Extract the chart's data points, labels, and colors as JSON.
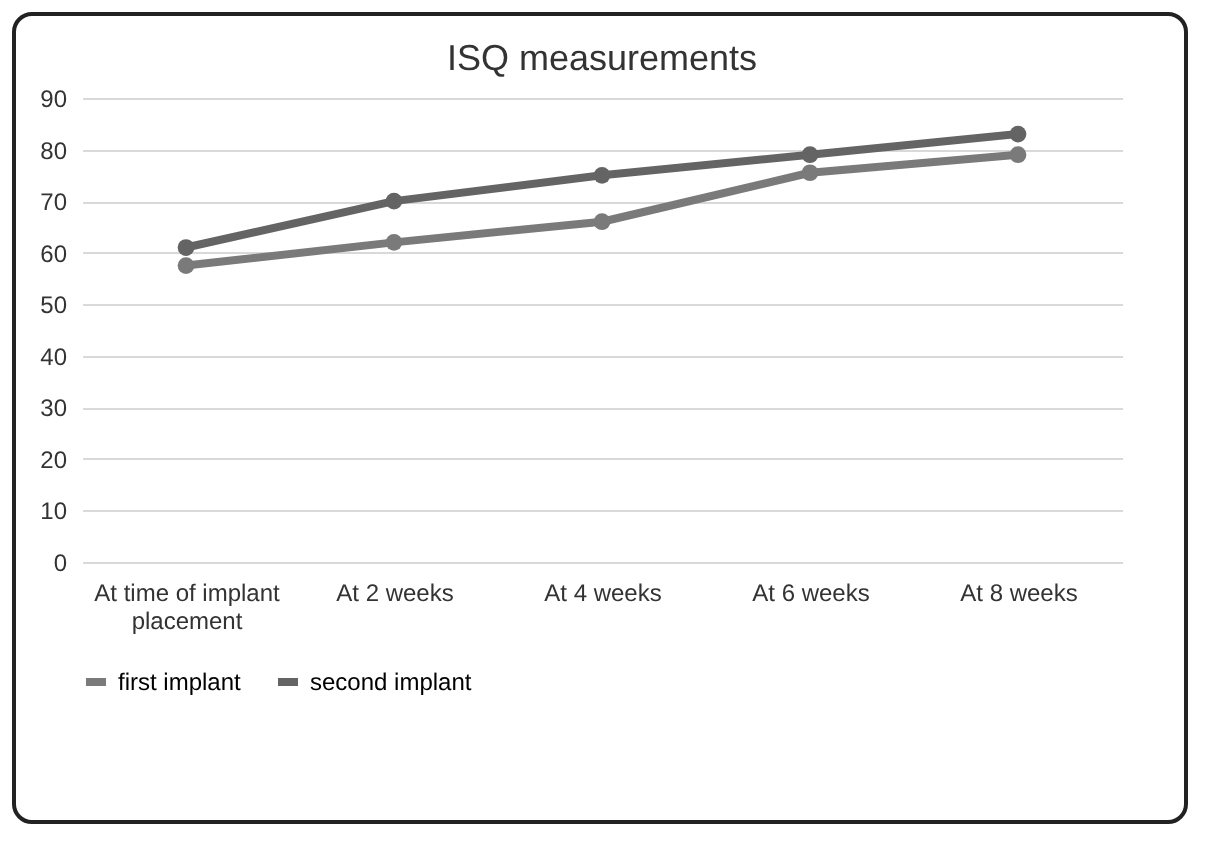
{
  "chart_data": {
    "type": "line",
    "title": "ISQ measurements",
    "categories": [
      "At time of implant placement",
      "At 2 weeks",
      "At 4 weeks",
      "At 6 weeks",
      "At 8 weeks"
    ],
    "series": [
      {
        "name": "first implant",
        "color": "#7a7a7a",
        "values": [
          57.5,
          62,
          66,
          75.5,
          79
        ]
      },
      {
        "name": "second implant",
        "color": "#646464",
        "values": [
          61,
          70,
          75,
          79,
          83
        ]
      }
    ],
    "ylim": [
      0,
      90
    ],
    "yticks": [
      0,
      10,
      20,
      30,
      40,
      50,
      60,
      70,
      80,
      90
    ],
    "grid": "y",
    "legend": "bottom",
    "marker": "circle",
    "line_style": "solid"
  }
}
